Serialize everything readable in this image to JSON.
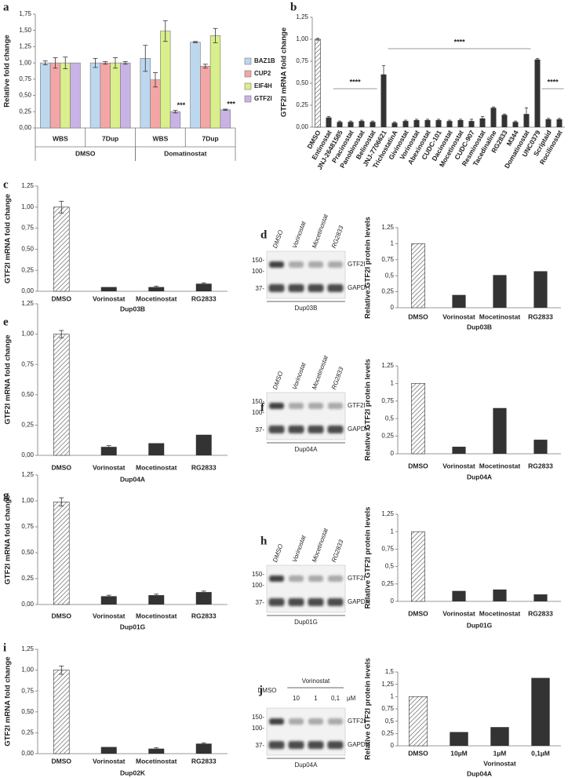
{
  "chart_data": [
    {
      "type": "bar",
      "panel": "a",
      "ylabel": "Relative fold change",
      "groups": [
        {
          "label": "DMSO",
          "categories": [
            "WBS",
            "7Dup"
          ]
        },
        {
          "label": "Domatinostat",
          "categories": [
            "WBS",
            "7Dup"
          ]
        }
      ],
      "series": [
        {
          "name": "BAZ1B",
          "color": "#bdd7ee",
          "values": [
            1,
            1,
            1.07,
            1.32
          ],
          "errors": [
            0.03,
            0.07,
            0.2,
            0.01
          ],
          "annotations": [
            null,
            null,
            null,
            null
          ]
        },
        {
          "name": "CUP2",
          "color": "#f4a6a6",
          "values": [
            1,
            1,
            0.74,
            0.95
          ],
          "errors": [
            0.08,
            0.02,
            0.11,
            0.03
          ],
          "annotations": [
            null,
            null,
            null,
            null
          ]
        },
        {
          "name": "EIF4H",
          "color": "#d9ef8b",
          "values": [
            1,
            1,
            1.49,
            1.42
          ],
          "errors": [
            0.09,
            0.08,
            0.16,
            0.11
          ],
          "annotations": [
            null,
            null,
            null,
            null
          ]
        },
        {
          "name": "GTF2I",
          "color": "#c9b3e6",
          "values": [
            1,
            1,
            0.25,
            0.28
          ],
          "errors": [
            null,
            0.02,
            0.02,
            0.01
          ],
          "annotations": [
            null,
            null,
            "***",
            "***"
          ]
        }
      ],
      "ylim": [
        0,
        1.75
      ],
      "yticks": [
        {
          "value": 0,
          "label": "0,00"
        },
        {
          "value": 0.25,
          "label": "0,25"
        },
        {
          "value": 0.5,
          "label": "0,50"
        },
        {
          "value": 0.75,
          "label": "0,75"
        },
        {
          "value": 1,
          "label": "1,00"
        },
        {
          "value": 1.25,
          "label": "1,25"
        },
        {
          "value": 1.5,
          "label": "1,50"
        },
        {
          "value": 1.75,
          "label": "1,75"
        }
      ]
    },
    {
      "type": "bar",
      "panel": "b",
      "ylabel": "GTF2I mRNA fold change",
      "color": "#333333",
      "hatched": [
        "DMSO"
      ],
      "categories": [
        "DMSO",
        "Entinostat",
        "JNJ-26481585",
        "Pracinostat",
        "Panobinostat",
        "Belinostat",
        "JNJ-7706621",
        "TrichostatinA",
        "Givinostat",
        "Vorinostat",
        "Abexinostat",
        "CUDC-101",
        "Dacinostat",
        "Mocetinostat",
        "CUDC-907",
        "Resminostat",
        "Tacedinaline",
        "RG2833",
        "M344",
        "Domatinostat",
        "UNC0379",
        "Scriptaid",
        "Rocilinostat"
      ],
      "values": [
        1.0,
        0.11,
        0.06,
        0.06,
        0.07,
        0.06,
        0.6,
        0.05,
        0.07,
        0.08,
        0.08,
        0.08,
        0.07,
        0.08,
        0.07,
        0.1,
        0.22,
        0.14,
        0.06,
        0.15,
        0.77,
        0.09,
        0.09
      ],
      "errors": [
        0.01,
        0.01,
        0.01,
        0.01,
        0.01,
        0.01,
        0.1,
        0.01,
        0.01,
        0.01,
        0.01,
        0.01,
        0.01,
        0.01,
        0.02,
        0.02,
        0.01,
        0.01,
        0.01,
        0.07,
        0.01,
        0.01,
        0.01
      ],
      "annotations": [
        "****",
        "****",
        "****"
      ],
      "ylim": [
        0,
        1.25
      ],
      "yticks": [
        {
          "value": 0,
          "label": "0,00"
        },
        {
          "value": 0.25,
          "label": "0,25"
        },
        {
          "value": 0.5,
          "label": "0,50"
        },
        {
          "value": 0.75,
          "label": "0,75"
        },
        {
          "value": 1,
          "label": "1,00"
        },
        {
          "value": 1.25,
          "label": "1,25"
        }
      ]
    },
    {
      "type": "bar",
      "panel": "c",
      "ylabel": "GTF2I mRNA fold change",
      "xlabel": "Dup03B",
      "color": "#333333",
      "hatched": [
        "DMSO"
      ],
      "categories": [
        "DMSO",
        "Vorinostat",
        "Mocetinostat",
        "RG2833"
      ],
      "values": [
        1.0,
        0.05,
        0.05,
        0.09
      ],
      "errors": [
        0.07,
        null,
        0.01,
        0.01
      ],
      "ylim": [
        0,
        1.25
      ],
      "yticks": [
        {
          "value": 0,
          "label": "0,00"
        },
        {
          "value": 0.25,
          "label": "0,25"
        },
        {
          "value": 0.5,
          "label": "0,50"
        },
        {
          "value": 0.75,
          "label": "0,75"
        },
        {
          "value": 1,
          "label": "1,00"
        },
        {
          "value": 1.25,
          "label": "1,25"
        }
      ]
    },
    {
      "type": "bar",
      "panel": "d",
      "ylabel": "Relative GTF2I protein levels",
      "xlabel": "Dup03B",
      "color": "#333333",
      "hatched": [
        "DMSO"
      ],
      "categories": [
        "DMSO",
        "Vorinostat",
        "Mocetinostat",
        "RG2833"
      ],
      "values": [
        1,
        0.2,
        0.51,
        0.57
      ],
      "ylim": [
        0,
        1.25
      ],
      "yticks": [
        0,
        {
          "value": 0.25,
          "label": "0,25"
        },
        {
          "value": 0.5,
          "label": "0,5"
        },
        {
          "value": 0.75,
          "label": "0,75"
        },
        1,
        {
          "value": 1.25,
          "label": "1,25"
        }
      ]
    },
    {
      "type": "bar",
      "panel": "e",
      "ylabel": "GTF2I mRNA fold change",
      "xlabel": "Dup04A",
      "color": "#333333",
      "hatched": [
        "DMSO"
      ],
      "categories": [
        "DMSO",
        "Vorinostat",
        "Mocetinostat",
        "RG2833"
      ],
      "values": [
        1.0,
        0.07,
        0.1,
        0.17
      ],
      "errors": [
        0.03,
        0.01,
        null,
        null
      ],
      "ylim": [
        0,
        1.25
      ],
      "yticks": [
        {
          "value": 0,
          "label": "0,00"
        },
        {
          "value": 0.25,
          "label": "0,25"
        },
        {
          "value": 0.5,
          "label": "0,50"
        },
        {
          "value": 0.75,
          "label": "0,75"
        },
        {
          "value": 1,
          "label": "1,00"
        },
        {
          "value": 1.25,
          "label": "1,25"
        }
      ]
    },
    {
      "type": "bar",
      "panel": "f",
      "ylabel": "Relative GTF2I protein levels",
      "xlabel": "Dup04A",
      "color": "#333333",
      "hatched": [
        "DMSO"
      ],
      "categories": [
        "DMSO",
        "Vorinostat",
        "Mocetinostat",
        "RG2833"
      ],
      "values": [
        1,
        0.1,
        0.65,
        0.2
      ],
      "ylim": [
        0,
        1.25
      ],
      "yticks": [
        0,
        {
          "value": 0.25,
          "label": "0,25"
        },
        {
          "value": 0.5,
          "label": "0,5"
        },
        {
          "value": 0.75,
          "label": "0,75"
        },
        1,
        {
          "value": 1.25,
          "label": "1,25"
        }
      ]
    },
    {
      "type": "bar",
      "panel": "g",
      "ylabel": "GTF2I mRNA fold change",
      "xlabel": "Dup01G",
      "color": "#333333",
      "hatched": [
        "DMSO"
      ],
      "categories": [
        "DMSO",
        "Vorinostat",
        "Mocetinostat",
        "RG2833"
      ],
      "values": [
        0.99,
        0.08,
        0.09,
        0.12
      ],
      "errors": [
        0.04,
        0.01,
        0.01,
        0.01
      ],
      "ylim": [
        0,
        1.25
      ],
      "yticks": [
        {
          "value": 0,
          "label": "0,00"
        },
        {
          "value": 0.25,
          "label": "0,25"
        },
        {
          "value": 0.5,
          "label": "0,50"
        },
        {
          "value": 0.75,
          "label": "0,75"
        },
        {
          "value": 1,
          "label": "1,00"
        },
        {
          "value": 1.25,
          "label": "1,25"
        }
      ]
    },
    {
      "type": "bar",
      "panel": "h",
      "ylabel": "Relative GTF2I protein levels",
      "xlabel": "Dup01G",
      "color": "#333333",
      "hatched": [
        "DMSO"
      ],
      "categories": [
        "DMSO",
        "Vorinostat",
        "Mocetinostat",
        "RG2833"
      ],
      "values": [
        1,
        0.15,
        0.17,
        0.1
      ],
      "ylim": [
        0,
        1.25
      ],
      "yticks": [
        0,
        {
          "value": 0.25,
          "label": "0,25"
        },
        {
          "value": 0.5,
          "label": "0,5"
        },
        {
          "value": 0.75,
          "label": "0,75"
        },
        1,
        {
          "value": 1.25,
          "label": "1,25"
        }
      ]
    },
    {
      "type": "bar",
      "panel": "i",
      "ylabel": "GTF2I mRNA fold change",
      "xlabel": "Dup02K",
      "color": "#333333",
      "hatched": [
        "DMSO"
      ],
      "categories": [
        "DMSO",
        "Vorinostat",
        "Mocetinostat",
        "RG2833"
      ],
      "values": [
        1.0,
        0.08,
        0.06,
        0.12
      ],
      "errors": [
        0.05,
        null,
        0.01,
        0.01
      ],
      "ylim": [
        0,
        1.25
      ],
      "yticks": [
        {
          "value": 0,
          "label": "0,00"
        },
        {
          "value": 0.25,
          "label": "0,25"
        },
        {
          "value": 0.5,
          "label": "0,50"
        },
        {
          "value": 0.75,
          "label": "0,75"
        },
        {
          "value": 1,
          "label": "1,00"
        },
        {
          "value": 1.25,
          "label": "1,25"
        }
      ]
    },
    {
      "type": "bar",
      "panel": "j",
      "ylabel": "Relative GTF2I protein levels",
      "xlabel": "Dup04A",
      "color": "#333333",
      "hatched": [
        "DMSO"
      ],
      "groups": [
        {
          "label": null,
          "categories": [
            "DMSO"
          ]
        },
        {
          "label": "Vorinostat",
          "categories": [
            "10µM",
            "1µM",
            "0,1µM"
          ]
        }
      ],
      "values": [
        1,
        0.28,
        0.38,
        1.38
      ],
      "ylim": [
        0,
        1.5
      ],
      "yticks": [
        0,
        {
          "value": 0.25,
          "label": "0,25"
        },
        {
          "value": 0.5,
          "label": "0,5"
        },
        {
          "value": 0.75,
          "label": "0,75"
        },
        1,
        {
          "value": 1.25,
          "label": "1,25"
        },
        {
          "value": 1.5,
          "label": "1,5"
        }
      ]
    }
  ],
  "blots": [
    {
      "lanes": [
        "DMSO",
        "Vorinostat",
        "Mocetinostat",
        "RG2833"
      ],
      "markers": [
        "150-",
        "100-",
        "37-"
      ],
      "proteins": [
        "GTF2I",
        "GAPDH"
      ],
      "sample": "Dup03B"
    },
    {
      "lanes": [
        "DMSO",
        "Vorinostat",
        "Mocetinostat",
        "RG2833"
      ],
      "markers": [
        "150-",
        "100-",
        "37-"
      ],
      "proteins": [
        "GTF2I",
        "GAPDH"
      ],
      "sample": "Dup04A"
    },
    {
      "lanes": [
        "DMSO",
        "Vorinostat",
        "Mocetinostat",
        "RG2833"
      ],
      "markers": [
        "150-",
        "100-",
        "37-"
      ],
      "proteins": [
        "GTF2I",
        "GAPDH"
      ],
      "sample": "Dup01G"
    },
    {
      "lanes": [
        "DMSO",
        "10",
        "1",
        "0,1"
      ],
      "treatment": "Vorinostat",
      "unit": "µM",
      "markers": [
        "150-",
        "100-",
        "37-"
      ],
      "proteins": [
        "GTF2I",
        "GAPDH"
      ],
      "sample": "Dup04A"
    }
  ]
}
